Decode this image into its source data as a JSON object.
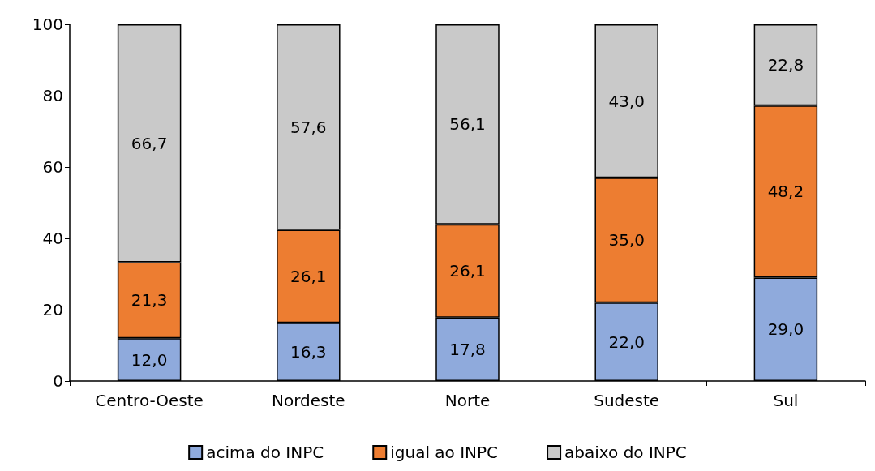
{
  "chart_data": {
    "type": "bar",
    "stacked": true,
    "categories": [
      "Centro-Oeste",
      "Nordeste",
      "Norte",
      "Sudeste",
      "Sul"
    ],
    "series": [
      {
        "name": "acima do INPC",
        "color": "#8faadc",
        "values": [
          12.0,
          16.3,
          17.8,
          22.0,
          29.0
        ],
        "value_labels": [
          "12,0",
          "16,3",
          "17,8",
          "22,0",
          "29,0"
        ]
      },
      {
        "name": "igual ao INPC",
        "color": "#ed7d31",
        "values": [
          21.3,
          26.1,
          26.1,
          35.0,
          48.2
        ],
        "value_labels": [
          "21,3",
          "26,1",
          "26,1",
          "35,0",
          "48,2"
        ]
      },
      {
        "name": "abaixo do INPC",
        "color": "#c9c9c9",
        "values": [
          66.7,
          57.6,
          56.1,
          43.0,
          22.8
        ],
        "value_labels": [
          "66,7",
          "57,6",
          "56,1",
          "43,0",
          "22,8"
        ]
      }
    ],
    "ylim": [
      0,
      100
    ],
    "yticks": [
      0,
      20,
      40,
      60,
      80,
      100
    ],
    "grid": false,
    "legend": "bottom"
  }
}
